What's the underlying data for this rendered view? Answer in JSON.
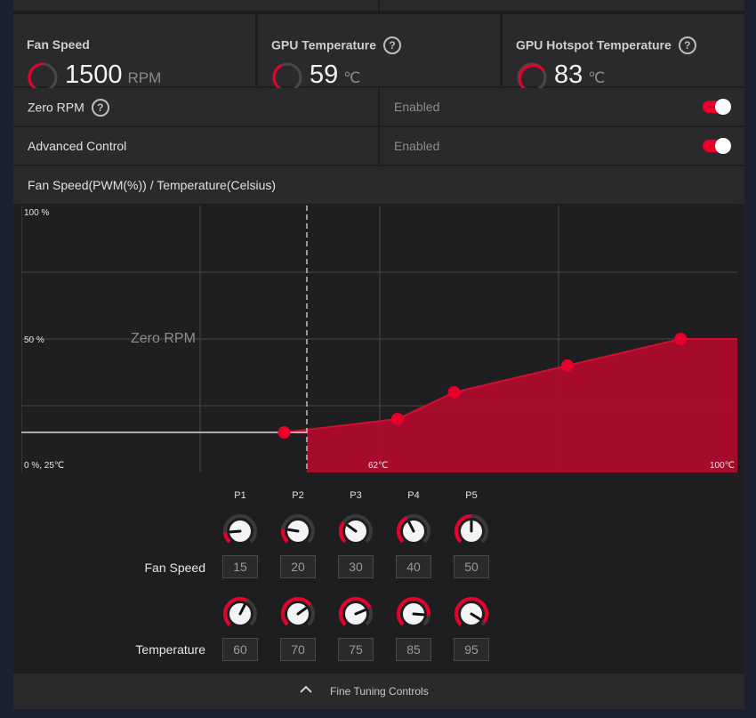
{
  "stats": [
    {
      "title": "Fan Speed",
      "value": "1500",
      "unit": "RPM",
      "help": false
    },
    {
      "title": "GPU Temperature",
      "value": "59",
      "unit": "℃",
      "help": true,
      "help_icon": "?"
    },
    {
      "title": "GPU Hotspot Temperature",
      "value": "83",
      "unit": "℃",
      "help": true,
      "help_icon": "?"
    }
  ],
  "zero_rpm": {
    "label": "Zero RPM",
    "help_icon": "?",
    "state": "Enabled",
    "on": true
  },
  "advanced_control": {
    "label": "Advanced Control",
    "state": "Enabled",
    "on": true
  },
  "curve_header": "Fan Speed(PWM(%)) / Temperature(Celsius)",
  "chart_data": {
    "type": "area",
    "title": "Fan Speed(PWM(%)) / Temperature(Celsius)",
    "xlabel": "",
    "ylabel": "",
    "x_ticks_shown": [
      "62℃",
      "100℃"
    ],
    "y_ticks_shown": [
      "100 %",
      "50 %"
    ],
    "origin_label": "0 %, 25℃",
    "zero_rpm_region_label": "Zero RPM",
    "xlim": [
      25,
      100
    ],
    "ylim": [
      0,
      100
    ],
    "zero_rpm_until": 62,
    "zero_rpm_line_value": 15,
    "points": [
      {
        "name": "P1",
        "temp": 60,
        "fan": 15
      },
      {
        "name": "P2",
        "temp": 70,
        "fan": 20
      },
      {
        "name": "P3",
        "temp": 75,
        "fan": 30
      },
      {
        "name": "P4",
        "temp": 85,
        "fan": 40
      },
      {
        "name": "P5",
        "temp": 95,
        "fan": 50
      }
    ],
    "grid": true,
    "fill_color": "#b20a2c",
    "point_color": "#e8002d"
  },
  "controls": {
    "points": [
      "P1",
      "P2",
      "P3",
      "P4",
      "P5"
    ],
    "fan_speed_label": "Fan Speed",
    "temperature_label": "Temperature",
    "fan_values": [
      "15",
      "20",
      "30",
      "40",
      "50"
    ],
    "temp_values": [
      "60",
      "70",
      "75",
      "85",
      "95"
    ]
  },
  "footer": {
    "label": "Fine Tuning Controls",
    "icon": "chevron-up-icon"
  },
  "colors": {
    "accent": "#e8002d",
    "panel": "#2a2a2c",
    "background": "#1c2130"
  }
}
